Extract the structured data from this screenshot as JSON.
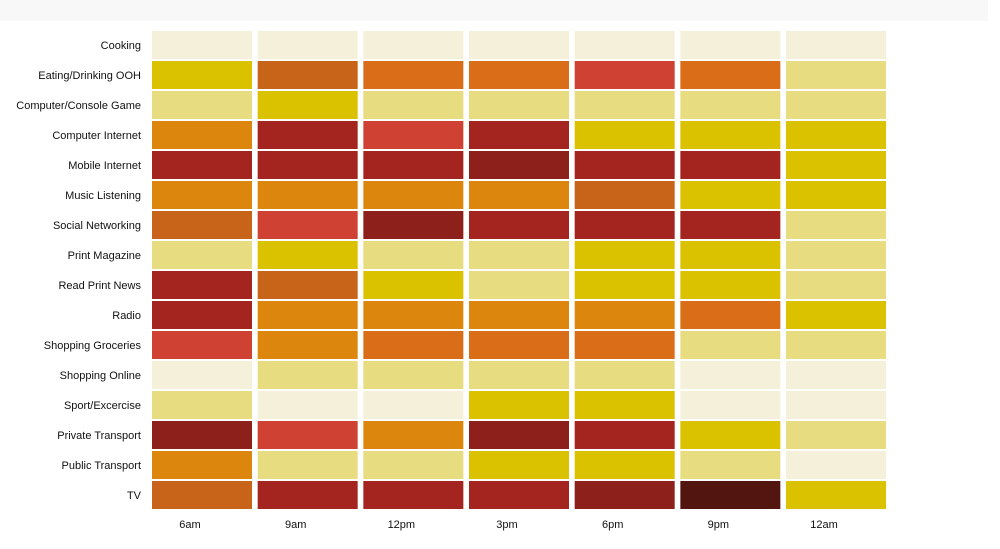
{
  "chart_data": {
    "type": "heatmap",
    "title": "",
    "xlabel": "",
    "ylabel": "",
    "categories": [
      "6am",
      "9am",
      "12pm",
      "3pm",
      "6pm",
      "9pm",
      "12am"
    ],
    "rows": [
      "Cooking",
      "Eating/Drinking OOH",
      "Computer/Console Game",
      "Computer Internet",
      "Mobile Internet",
      "Music Listening",
      "Social Networking",
      "Print Magazine",
      "Read Print News",
      "Radio",
      "Shopping Groceries",
      "Shopping Online",
      "Sport/Excercise",
      "Private Transport",
      "Public Transport",
      "TV"
    ],
    "values": [
      [
        1,
        1,
        1,
        1,
        1,
        1,
        1
      ],
      [
        4,
        7,
        6,
        6,
        8,
        6,
        2
      ],
      [
        2,
        4,
        2,
        2,
        2,
        2,
        2
      ],
      [
        5,
        9,
        8,
        9,
        4,
        4,
        4
      ],
      [
        9,
        9,
        9,
        10,
        9,
        9,
        4
      ],
      [
        5,
        5,
        5,
        5,
        7,
        4,
        4
      ],
      [
        7,
        8,
        10,
        9,
        9,
        9,
        2
      ],
      [
        2,
        4,
        2,
        2,
        4,
        4,
        2
      ],
      [
        9,
        7,
        4,
        2,
        4,
        4,
        2
      ],
      [
        9,
        5,
        5,
        5,
        5,
        6,
        4
      ],
      [
        8,
        5,
        6,
        6,
        6,
        2,
        2
      ],
      [
        1,
        2,
        2,
        2,
        2,
        1,
        1
      ],
      [
        2,
        1,
        1,
        4,
        4,
        1,
        1
      ],
      [
        10,
        8,
        5,
        10,
        9,
        4,
        2
      ],
      [
        5,
        2,
        2,
        4,
        4,
        2,
        1
      ],
      [
        7,
        9,
        9,
        9,
        10,
        11,
        4
      ]
    ],
    "palette": {
      "1": "#f5f0da",
      "2": "#e8dc80",
      "4": "#dbc200",
      "5": "#dd860e",
      "6": "#da6e18",
      "7": "#c86419",
      "8": "#cf4133",
      "9": "#a42520",
      "10": "#8e201b",
      "11": "#531510"
    },
    "legend": "none",
    "grid": false
  }
}
